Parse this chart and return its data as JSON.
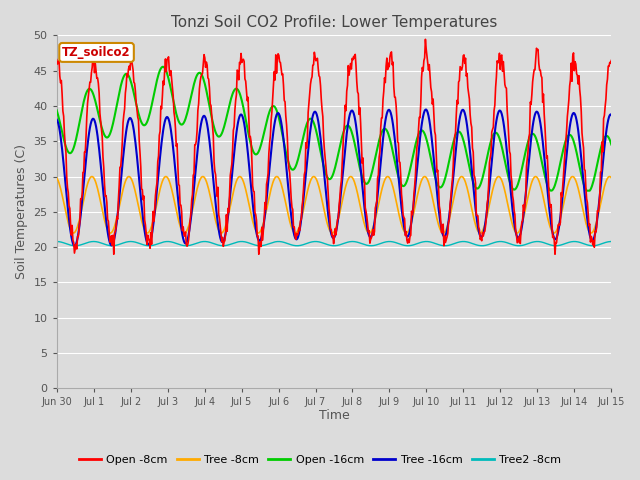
{
  "title": "Tonzi Soil CO2 Profile: Lower Temperatures",
  "xlabel": "Time",
  "ylabel": "Soil Temperatures (C)",
  "ylim": [
    0,
    50
  ],
  "yticks": [
    0,
    5,
    10,
    15,
    20,
    25,
    30,
    35,
    40,
    45,
    50
  ],
  "legend_label": "TZ_soilco2",
  "series_labels": [
    "Open -8cm",
    "Tree -8cm",
    "Open -16cm",
    "Tree -16cm",
    "Tree2 -8cm"
  ],
  "series_colors": [
    "#ff0000",
    "#ffaa00",
    "#00cc00",
    "#0000cc",
    "#00bbbb"
  ],
  "background_color": "#dcdcdc",
  "xtick_labels": [
    "Jun 30",
    "Jul 1",
    "Jul 2",
    "Jul 3",
    "Jul 4",
    "Jul 5",
    "Jul 6",
    "Jul 7",
    "Jul 8",
    "Jul 9",
    "Jul 10",
    "Jul 11",
    "Jul 12",
    "Jul 13",
    "Jul 14",
    "Jul 15"
  ],
  "n_days": 15,
  "points_per_day": 48
}
